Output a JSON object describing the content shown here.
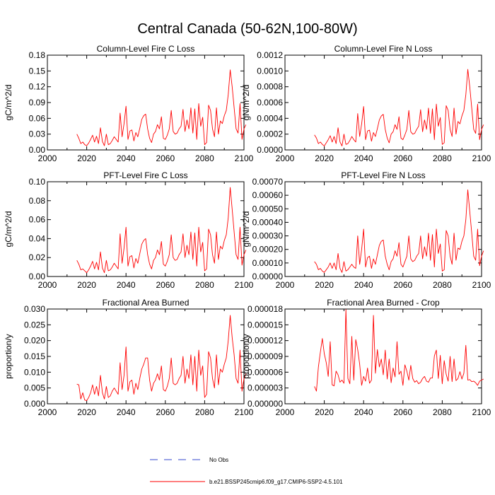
{
  "page": {
    "title": "Central Canada (50-62N,100-80W)",
    "legend": {
      "no_obs": "No Obs",
      "run": "b.e21.BSSP245cmip6.f09_g17.CMIP6-SSP2-4.5.101"
    },
    "colors": {
      "series": "#ff0000",
      "legend_dash": "#3344cc",
      "axis": "#000000"
    }
  },
  "chart_data": [
    {
      "type": "line",
      "title": "Column-Level Fire C Loss",
      "ylabel": "gC/m^2/d",
      "xlim": [
        2000,
        2100
      ],
      "ylim": [
        0,
        0.18
      ],
      "xticks": [
        2000,
        2020,
        2040,
        2060,
        2080,
        2100
      ],
      "xtick_labels": [
        "2000",
        "2020",
        "2040",
        "2060",
        "2080",
        "2100"
      ],
      "yticks": [
        0,
        0.03,
        0.06,
        0.09,
        0.12,
        0.15,
        0.18
      ],
      "ytick_labels": [
        "0.00",
        "0.03",
        "0.06",
        "0.09",
        "0.12",
        "0.15",
        "0.18"
      ],
      "series": [
        {
          "name": "b.e21.BSSP245cmip6.f09_g17.CMIP6-SSP2-4.5.101",
          "x_start": 2015,
          "x_step": 1,
          "values": [
            0.03,
            0.022,
            0.012,
            0.015,
            0.01,
            0.008,
            0.013,
            0.02,
            0.028,
            0.015,
            0.026,
            0.012,
            0.042,
            0.016,
            0.008,
            0.03,
            0.01,
            0.012,
            0.018,
            0.025,
            0.02,
            0.015,
            0.07,
            0.025,
            0.05,
            0.083,
            0.02,
            0.036,
            0.038,
            0.017,
            0.033,
            0.025,
            0.041,
            0.058,
            0.065,
            0.068,
            0.04,
            0.022,
            0.014,
            0.03,
            0.035,
            0.048,
            0.04,
            0.063,
            0.022,
            0.02,
            0.028,
            0.04,
            0.075,
            0.035,
            0.03,
            0.032,
            0.04,
            0.045,
            0.077,
            0.035,
            0.057,
            0.04,
            0.08,
            0.032,
            0.078,
            0.02,
            0.088,
            0.045,
            0.062,
            0.01,
            0.014,
            0.085,
            0.075,
            0.04,
            0.025,
            0.08,
            0.03,
            0.055,
            0.05,
            0.065,
            0.075,
            0.105,
            0.152,
            0.12,
            0.08,
            0.04,
            0.032,
            0.088,
            0.02,
            0.04,
            0.048
          ]
        }
      ]
    },
    {
      "type": "line",
      "title": "Column-Level Fire N Loss",
      "ylabel": "gN/m^2/d",
      "xlim": [
        2000,
        2100
      ],
      "ylim": [
        0,
        0.0012
      ],
      "xticks": [
        2000,
        2020,
        2040,
        2060,
        2080,
        2100
      ],
      "xtick_labels": [
        "2000",
        "2020",
        "2040",
        "2060",
        "2080",
        "2100"
      ],
      "yticks": [
        0,
        0.0002,
        0.0004,
        0.0006,
        0.0008,
        0.001,
        0.0012
      ],
      "ytick_labels": [
        "0.0000",
        "0.0002",
        "0.0004",
        "0.0006",
        "0.0008",
        "0.0010",
        "0.0012"
      ],
      "series": [
        {
          "name": "b.e21.BSSP245cmip6.f09_g17.CMIP6-SSP2-4.5.101",
          "x_start": 2015,
          "x_step": 1,
          "values": [
            0.00019,
            0.00015,
            8e-05,
            0.0001,
            7e-05,
            5e-05,
            9e-05,
            0.00013,
            0.00018,
            0.0001,
            0.00017,
            8e-05,
            0.00028,
            0.0001,
            5e-05,
            0.0002,
            7e-05,
            8e-05,
            0.00012,
            0.00017,
            0.00013,
            0.0001,
            0.00046,
            0.00017,
            0.00033,
            0.00055,
            0.00013,
            0.00024,
            0.00025,
            0.00011,
            0.00022,
            0.00017,
            0.00027,
            0.00038,
            0.00043,
            0.00045,
            0.00026,
            0.00015,
            9e-05,
            0.0002,
            0.00023,
            0.00032,
            0.00026,
            0.00042,
            0.00015,
            0.00013,
            0.00019,
            0.00026,
            0.0005,
            0.00023,
            0.0002,
            0.00021,
            0.00026,
            0.0003,
            0.00051,
            0.00023,
            0.00038,
            0.00026,
            0.00053,
            0.00021,
            0.00052,
            0.00013,
            0.00058,
            0.0003,
            0.00041,
            7e-05,
            9e-05,
            0.00056,
            0.0005,
            0.00026,
            0.00017,
            0.00053,
            0.0002,
            0.00036,
            0.00033,
            0.00043,
            0.0005,
            0.0007,
            0.00102,
            0.0008,
            0.00053,
            0.00026,
            0.00021,
            0.00058,
            0.00013,
            0.00026,
            0.00032
          ]
        }
      ]
    },
    {
      "type": "line",
      "title": "PFT-Level Fire C Loss",
      "ylabel": "gC/m^2/d",
      "xlim": [
        2000,
        2100
      ],
      "ylim": [
        0,
        0.1
      ],
      "xticks": [
        2000,
        2020,
        2040,
        2060,
        2080,
        2100
      ],
      "xtick_labels": [
        "2000",
        "2020",
        "2040",
        "2060",
        "2080",
        "2100"
      ],
      "yticks": [
        0,
        0.02,
        0.04,
        0.06,
        0.08,
        0.1
      ],
      "ytick_labels": [
        "0.00",
        "0.02",
        "0.04",
        "0.06",
        "0.08",
        "0.10"
      ],
      "series": [
        {
          "name": "b.e21.BSSP245cmip6.f09_g17.CMIP6-SSP2-4.5.101",
          "x_start": 2015,
          "x_step": 1,
          "values": [
            0.017,
            0.013,
            0.007,
            0.008,
            0.006,
            0.004,
            0.007,
            0.011,
            0.016,
            0.008,
            0.015,
            0.007,
            0.026,
            0.009,
            0.004,
            0.017,
            0.006,
            0.007,
            0.01,
            0.014,
            0.011,
            0.008,
            0.045,
            0.014,
            0.03,
            0.052,
            0.011,
            0.021,
            0.022,
            0.009,
            0.019,
            0.014,
            0.024,
            0.034,
            0.038,
            0.04,
            0.023,
            0.013,
            0.008,
            0.017,
            0.02,
            0.028,
            0.023,
            0.037,
            0.013,
            0.011,
            0.016,
            0.023,
            0.044,
            0.02,
            0.017,
            0.018,
            0.023,
            0.026,
            0.045,
            0.02,
            0.033,
            0.023,
            0.047,
            0.018,
            0.046,
            0.011,
            0.052,
            0.026,
            0.036,
            0.006,
            0.008,
            0.05,
            0.044,
            0.023,
            0.014,
            0.047,
            0.018,
            0.032,
            0.029,
            0.038,
            0.044,
            0.062,
            0.094,
            0.071,
            0.047,
            0.023,
            0.018,
            0.052,
            0.012,
            0.023,
            0.028
          ]
        }
      ]
    },
    {
      "type": "line",
      "title": "PFT-Level Fire N Loss",
      "ylabel": "gN/m^2/d",
      "xlim": [
        2000,
        2100
      ],
      "ylim": [
        0,
        0.0007
      ],
      "xticks": [
        2000,
        2020,
        2040,
        2060,
        2080,
        2100
      ],
      "xtick_labels": [
        "2000",
        "2020",
        "2040",
        "2060",
        "2080",
        "2100"
      ],
      "yticks": [
        0,
        0.0001,
        0.0002,
        0.0003,
        0.0004,
        0.0005,
        0.0006,
        0.0007
      ],
      "ytick_labels": [
        "0.00000",
        "0.00010",
        "0.00020",
        "0.00030",
        "0.00040",
        "0.00050",
        "0.00060",
        "0.00070"
      ],
      "series": [
        {
          "name": "b.e21.BSSP245cmip6.f09_g17.CMIP6-SSP2-4.5.101",
          "x_start": 2015,
          "x_step": 1,
          "values": [
            0.00011,
            9e-05,
            5e-05,
            6e-05,
            4e-05,
            3e-05,
            5e-05,
            7e-05,
            0.0001,
            6e-05,
            0.0001,
            5e-05,
            0.00017,
            6e-05,
            3e-05,
            0.00011,
            4e-05,
            5e-05,
            7e-05,
            9e-05,
            7e-05,
            6e-05,
            0.0003,
            9e-05,
            0.0002,
            0.00035,
            7e-05,
            0.00014,
            0.00015,
            6e-05,
            0.00013,
            9e-05,
            0.00016,
            0.00023,
            0.00026,
            0.00027,
            0.00015,
            9e-05,
            5e-05,
            0.00011,
            0.00013,
            0.00019,
            0.00015,
            0.00025,
            9e-05,
            7e-05,
            0.00011,
            0.00015,
            0.0003,
            0.00013,
            0.00011,
            0.00012,
            0.00015,
            0.00017,
            0.0003,
            0.00013,
            0.00022,
            0.00015,
            0.00032,
            0.00012,
            0.00031,
            7e-05,
            0.00035,
            0.00017,
            0.00024,
            4e-05,
            5e-05,
            0.00034,
            0.0003,
            0.00015,
            9e-05,
            0.00032,
            0.00012,
            0.00021,
            0.0002,
            0.00026,
            0.0003,
            0.00042,
            0.00064,
            0.00048,
            0.00032,
            0.00015,
            0.00012,
            0.00035,
            8e-05,
            0.00015,
            0.00019
          ]
        }
      ]
    },
    {
      "type": "line",
      "title": "Fractional Area Burned",
      "ylabel": "proportion/y",
      "xlim": [
        2000,
        2100
      ],
      "ylim": [
        0,
        0.03
      ],
      "xticks": [
        2000,
        2020,
        2040,
        2060,
        2080,
        2100
      ],
      "xtick_labels": [
        "2000",
        "2020",
        "2040",
        "2060",
        "2080",
        "2100"
      ],
      "yticks": [
        0,
        0.005,
        0.01,
        0.015,
        0.02,
        0.025,
        0.03
      ],
      "ytick_labels": [
        "0.000",
        "0.005",
        "0.010",
        "0.015",
        "0.020",
        "0.025",
        "0.030"
      ],
      "series": [
        {
          "name": "b.e21.BSSP245cmip6.f09_g17.CMIP6-SSP2-4.5.101",
          "x_start": 2015,
          "x_step": 1,
          "values": [
            0.0062,
            0.006,
            0.0015,
            0.0035,
            0.0012,
            0.001,
            0.002,
            0.0035,
            0.006,
            0.003,
            0.0055,
            0.0025,
            0.009,
            0.0035,
            0.0015,
            0.0055,
            0.002,
            0.0025,
            0.004,
            0.005,
            0.004,
            0.003,
            0.013,
            0.0045,
            0.009,
            0.018,
            0.004,
            0.007,
            0.0075,
            0.003,
            0.0065,
            0.0045,
            0.008,
            0.011,
            0.0125,
            0.0145,
            0.0145,
            0.0075,
            0.004,
            0.0065,
            0.0075,
            0.0095,
            0.0075,
            0.012,
            0.0045,
            0.004,
            0.0055,
            0.008,
            0.0145,
            0.0065,
            0.006,
            0.0065,
            0.008,
            0.009,
            0.015,
            0.0065,
            0.011,
            0.008,
            0.0155,
            0.006,
            0.015,
            0.004,
            0.017,
            0.009,
            0.012,
            0.002,
            0.003,
            0.0165,
            0.0145,
            0.008,
            0.005,
            0.0155,
            0.006,
            0.011,
            0.01,
            0.0125,
            0.0145,
            0.02,
            0.028,
            0.021,
            0.0155,
            0.008,
            0.0065,
            0.017,
            0.004,
            0.008,
            0.0095
          ]
        }
      ]
    },
    {
      "type": "line",
      "title": "Fractional Area Burned - Crop",
      "ylabel": "proportion/y",
      "xlim": [
        2000,
        2100
      ],
      "ylim": [
        0,
        1.8e-05
      ],
      "xticks": [
        2000,
        2020,
        2040,
        2060,
        2080,
        2100
      ],
      "xtick_labels": [
        "2000",
        "2020",
        "2040",
        "2060",
        "2080",
        "2100"
      ],
      "yticks": [
        0,
        3e-06,
        6e-06,
        9e-06,
        1.2e-05,
        1.5e-05,
        1.8e-05
      ],
      "ytick_labels": [
        "0.000000",
        "0.000003",
        "0.000006",
        "0.000009",
        "0.000012",
        "0.000015",
        "0.000018"
      ],
      "series": [
        {
          "name": "b.e21.BSSP245cmip6.f09_g17.CMIP6-SSP2-4.5.101",
          "x_start": 2015,
          "x_step": 1,
          "values": [
            3.3e-06,
            2.4e-06,
            7e-06,
            9.8e-06,
            1.24e-05,
            9.5e-06,
            7.8e-06,
            5.2e-06,
            1.18e-05,
            3.6e-06,
            3.4e-06,
            6.2e-06,
            5.5e-06,
            4.1e-06,
            4.5e-06,
            3.9e-06,
            1.79e-05,
            4.8e-06,
            3.8e-06,
            1.28e-05,
            4.5e-06,
            1.22e-05,
            1.03e-05,
            7.5e-06,
            3.5e-06,
            5.2e-06,
            4.3e-06,
            6.8e-06,
            3.9e-06,
            4.5e-06,
            1.68e-05,
            5.8e-06,
            1.03e-05,
            7e-06,
            8.5e-06,
            5.5e-06,
            1.02e-05,
            4.7e-06,
            8.5e-06,
            4e-06,
            6.8e-06,
            5.1e-06,
            1.18e-05,
            5.6e-06,
            6.2e-06,
            3.5e-06,
            7.4e-06,
            6.2e-06,
            4.5e-06,
            7.3e-06,
            4.8e-06,
            4.1e-06,
            4.4e-06,
            3.8e-06,
            4.1e-06,
            4.8e-06,
            5.2e-06,
            4.3e-06,
            4.1e-06,
            4.9e-06,
            4.9e-06,
            9.1e-06,
            1.02e-05,
            4.8e-06,
            9.2e-06,
            3.8e-06,
            8.2e-06,
            5.6e-06,
            4.3e-06,
            9e-06,
            4.2e-06,
            8.5e-06,
            4.4e-06,
            4.8e-06,
            6.1e-06,
            4.7e-06,
            5.8e-06,
            1.11e-05,
            4.5e-06,
            4.6e-06,
            4.2e-06,
            4.3e-06,
            4e-06,
            3.5e-06,
            4.3e-06,
            4.5e-06,
            4.7e-06
          ]
        }
      ]
    }
  ]
}
